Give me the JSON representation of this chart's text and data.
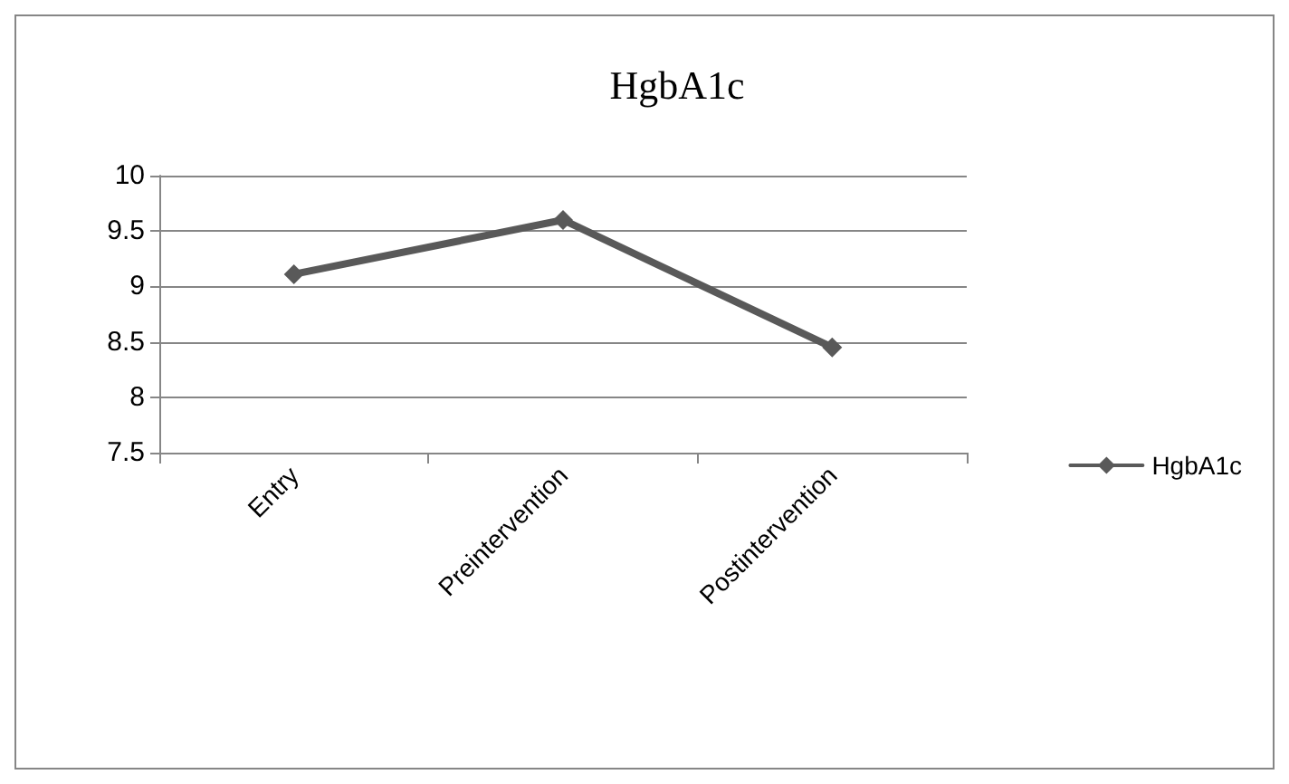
{
  "chart_data": {
    "type": "line",
    "title": "HgbA1c",
    "categories": [
      "Entry",
      "Preintervention",
      "Postintervention"
    ],
    "series": [
      {
        "name": "HgbA1c",
        "color": "#595959",
        "values": [
          9.11,
          9.6,
          8.45
        ]
      }
    ],
    "ylim": [
      7.5,
      10
    ],
    "yticks": [
      7.5,
      8,
      8.5,
      9,
      9.5,
      10
    ],
    "grid": "y",
    "legend": "right",
    "marker": "diamond",
    "line_style": "solid"
  }
}
